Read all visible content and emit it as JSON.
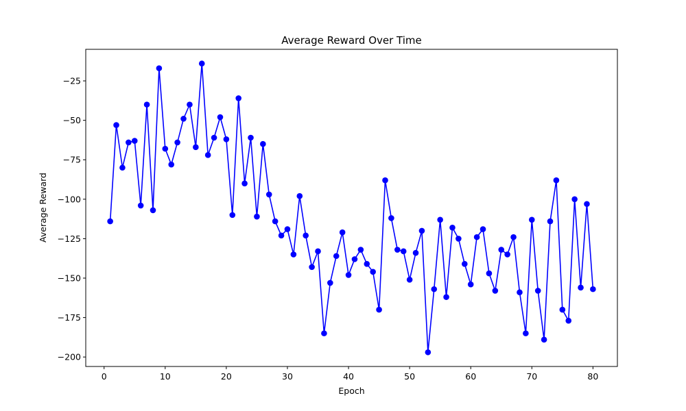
{
  "chart_data": {
    "type": "line",
    "title": "Average Reward Over Time",
    "xlabel": "Epoch",
    "ylabel": "Average Reward",
    "xlim": [
      -3,
      84
    ],
    "ylim": [
      -206,
      -5
    ],
    "xticks": [
      0,
      10,
      20,
      30,
      40,
      50,
      60,
      70,
      80
    ],
    "yticks": [
      -200,
      -175,
      -150,
      -125,
      -100,
      -75,
      -50,
      -25
    ],
    "grid": false,
    "line_color": "#0000ff",
    "marker": "circle",
    "series": [
      {
        "x": [
          1,
          2,
          3,
          4,
          5,
          6,
          7,
          8,
          9,
          10,
          11,
          12,
          13,
          14,
          15,
          16,
          17,
          18,
          19,
          20,
          21,
          22,
          23,
          24,
          25,
          26,
          27,
          28,
          29,
          30,
          31,
          32,
          33,
          34,
          35,
          36,
          37,
          38,
          39,
          40,
          41,
          42,
          43,
          44,
          45,
          46,
          47,
          48,
          49,
          50,
          51,
          52,
          53,
          54,
          55,
          56,
          57,
          58,
          59,
          60,
          61,
          62,
          63,
          64,
          65,
          66,
          67,
          68,
          69,
          70,
          71,
          72,
          73,
          74,
          75,
          76,
          77,
          78,
          79,
          80
        ],
        "y": [
          -114,
          -53,
          -80,
          -64,
          -63,
          -104,
          -40,
          -107,
          -17,
          -68,
          -78,
          -64,
          -49,
          -40,
          -67,
          -14,
          -72,
          -61,
          -48,
          -62,
          -110,
          -36,
          -90,
          -61,
          -111,
          -65,
          -97,
          -114,
          -123,
          -119,
          -135,
          -98,
          -123,
          -143,
          -133,
          -185,
          -153,
          -136,
          -121,
          -148,
          -138,
          -132,
          -141,
          -146,
          -170,
          -88,
          -112,
          -132,
          -133,
          -151,
          -134,
          -120,
          -197,
          -157,
          -113,
          -162,
          -118,
          -125,
          -141,
          -154,
          -124,
          -119,
          -147,
          -158,
          -132,
          -135,
          -124,
          -159,
          -185,
          -113,
          -158,
          -189,
          -114,
          -88,
          -170,
          -177,
          -100,
          -156,
          -103,
          -157
        ]
      }
    ]
  }
}
